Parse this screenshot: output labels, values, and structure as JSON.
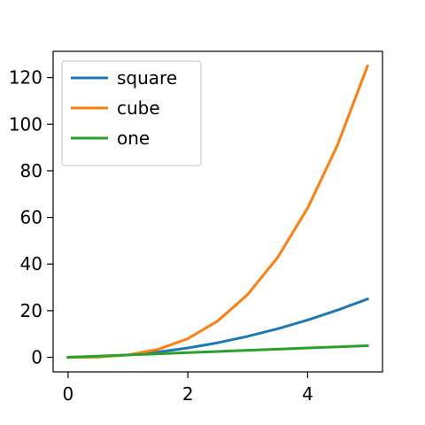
{
  "chart_data": {
    "type": "line",
    "title": "",
    "xlabel": "",
    "ylabel": "",
    "x": [
      0,
      0.5,
      1,
      1.5,
      2,
      2.5,
      3,
      3.5,
      4,
      4.5,
      5
    ],
    "series": [
      {
        "name": "square",
        "color": "#1f77b4",
        "values": [
          0,
          0.25,
          1,
          2.25,
          4,
          6.25,
          9,
          12.25,
          16,
          20.25,
          25
        ]
      },
      {
        "name": "cube",
        "color": "#ff7f0e",
        "values": [
          0,
          0.125,
          1,
          3.375,
          8,
          15.625,
          27,
          42.875,
          64,
          91.125,
          125
        ]
      },
      {
        "name": "one",
        "color": "#2ca02c",
        "values": [
          0,
          0.5,
          1,
          1.5,
          2,
          2.5,
          3,
          3.5,
          4,
          4.5,
          5
        ]
      }
    ],
    "xlim": [
      -0.25,
      5.25
    ],
    "ylim": [
      -6.25,
      131.25
    ],
    "xticks": [
      0,
      2,
      4
    ],
    "xtick_labels": [
      "0",
      "2",
      "4"
    ],
    "yticks": [
      0,
      20,
      40,
      60,
      80,
      100,
      120
    ],
    "ytick_labels": [
      "0",
      "20",
      "40",
      "60",
      "80",
      "100",
      "120"
    ],
    "grid": false,
    "legend_position": "upper-left"
  }
}
